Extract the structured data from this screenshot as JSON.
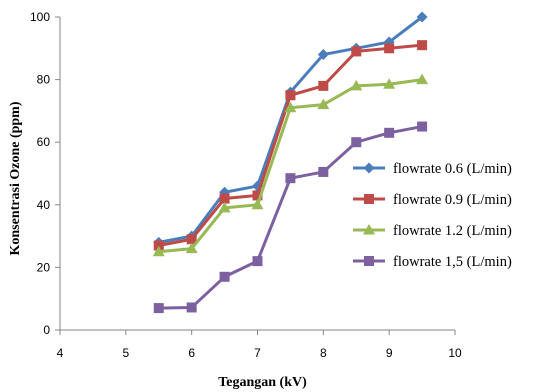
{
  "chart_data": {
    "type": "line",
    "title": "",
    "xlabel": "Tegangan (kV)",
    "ylabel": "Konsentrasi Ozone (ppm)",
    "xlim": [
      4,
      10
    ],
    "ylim": [
      0,
      100
    ],
    "xticks": [
      "4",
      "5",
      "6",
      "7",
      "8",
      "9",
      "10"
    ],
    "yticks": [
      "0",
      "20",
      "40",
      "60",
      "80",
      "100"
    ],
    "grid": false,
    "legend_position": "right",
    "series": [
      {
        "name": "flowrate 0.6 (L/min)",
        "color": "#4A7EBB",
        "marker": "diamond",
        "x": [
          5.5,
          6,
          6.5,
          7,
          7.5,
          8,
          8.5,
          9,
          9.5
        ],
        "y": [
          28,
          30,
          44,
          46,
          76,
          88,
          90,
          92,
          100
        ]
      },
      {
        "name": "flowrate 0.9 (L/min)",
        "color": "#BE4B48",
        "marker": "square",
        "x": [
          5.5,
          6,
          6.5,
          7,
          7.5,
          8,
          8.5,
          9,
          9.5
        ],
        "y": [
          27,
          29,
          42,
          43,
          75,
          78,
          89,
          90,
          91
        ]
      },
      {
        "name": "flowrate 1.2 (L/min)",
        "color": "#98B954",
        "marker": "triangle",
        "x": [
          5.5,
          6,
          6.5,
          7,
          7.5,
          8,
          8.5,
          9,
          9.5
        ],
        "y": [
          25,
          26,
          39,
          40,
          71,
          72,
          78,
          78.5,
          80
        ]
      },
      {
        "name": "flowrate 1,5 (L/min)",
        "color": "#7D60A0",
        "marker": "square",
        "x": [
          5.5,
          6,
          6.5,
          7,
          7.5,
          8,
          8.5,
          9,
          9.5
        ],
        "y": [
          7,
          7.2,
          17,
          22,
          48.5,
          50.5,
          60,
          63,
          65
        ]
      }
    ]
  }
}
